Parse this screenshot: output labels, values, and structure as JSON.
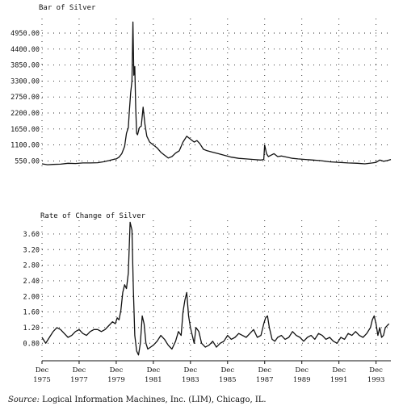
{
  "chart_data": [
    {
      "type": "line",
      "title": "Bar of Silver",
      "y_ticks": [
        "4950.00",
        "4400.00",
        "3850.00",
        "3300.00",
        "2750.00",
        "2200.00",
        "1650.00",
        "1100.00",
        "550.00"
      ],
      "ylim": [
        200,
        5450
      ],
      "xlim": [
        1975.0,
        1993.8
      ],
      "grid": true,
      "series": [
        {
          "x": [
            1975.0,
            1975.3,
            1975.6,
            1976.0,
            1976.4,
            1976.8,
            1977.2,
            1977.6,
            1978.0,
            1978.3,
            1978.6,
            1978.9,
            1979.0,
            1979.15,
            1979.3,
            1979.45,
            1979.55,
            1979.65,
            1979.7,
            1979.78,
            1979.85,
            1979.9,
            1979.95,
            1980.0,
            1980.05,
            1980.1,
            1980.15,
            1980.25,
            1980.35,
            1980.45,
            1980.55,
            1980.65,
            1980.8,
            1981.0,
            1981.2,
            1981.4,
            1981.6,
            1981.8,
            1982.0,
            1982.2,
            1982.4,
            1982.6,
            1982.8,
            1982.9,
            1983.0,
            1983.1,
            1983.2,
            1983.35,
            1983.5,
            1983.7,
            1983.9,
            1984.2,
            1984.5,
            1984.8,
            1985.2,
            1985.6,
            1986.0,
            1986.4,
            1986.8,
            1986.95,
            1987.0,
            1987.1,
            1987.2,
            1987.35,
            1987.5,
            1987.7,
            1987.9,
            1988.2,
            1988.5,
            1988.8,
            1989.2,
            1989.6,
            1990.0,
            1990.5,
            1991.0,
            1991.5,
            1992.0,
            1992.4,
            1992.8,
            1993.0,
            1993.2,
            1993.4,
            1993.6,
            1993.8
          ],
          "values": [
            450,
            420,
            430,
            440,
            470,
            460,
            480,
            480,
            490,
            520,
            560,
            610,
            620,
            680,
            800,
            1050,
            1500,
            1700,
            2200,
            2900,
            3300,
            5330,
            3500,
            3800,
            2400,
            1500,
            1450,
            1700,
            1750,
            2400,
            1800,
            1400,
            1200,
            1100,
            1000,
            850,
            750,
            650,
            700,
            820,
            900,
            1200,
            1400,
            1350,
            1300,
            1250,
            1200,
            1250,
            1150,
            950,
            900,
            850,
            800,
            750,
            680,
            640,
            620,
            600,
            580,
            600,
            1100,
            800,
            700,
            750,
            800,
            700,
            720,
            680,
            640,
            620,
            600,
            580,
            560,
            520,
            500,
            480,
            470,
            450,
            480,
            500,
            580,
            540,
            560,
            600
          ]
        }
      ]
    },
    {
      "type": "line",
      "title": "Rate of Change of Silver",
      "y_ticks": [
        "3.60",
        "3.20",
        "2.80",
        "2.40",
        "2.00",
        "1.60",
        "1.20",
        "0.80"
      ],
      "ylim": [
        0.35,
        3.95
      ],
      "xlim": [
        1975.0,
        1993.8
      ],
      "x_ticks": [
        {
          "x": 1975,
          "month": "Dec",
          "year": "1975"
        },
        {
          "x": 1977,
          "month": "Dec",
          "year": "1977"
        },
        {
          "x": 1979,
          "month": "Dec",
          "year": "1979"
        },
        {
          "x": 1981,
          "month": "Dec",
          "year": "1981"
        },
        {
          "x": 1983,
          "month": "Dec",
          "year": "1983"
        },
        {
          "x": 1985,
          "month": "Dec",
          "year": "1985"
        },
        {
          "x": 1987,
          "month": "Dec",
          "year": "1987"
        },
        {
          "x": 1989,
          "month": "Dec",
          "year": "1989"
        },
        {
          "x": 1991,
          "month": "Dec",
          "year": "1991"
        },
        {
          "x": 1993,
          "month": "Dec",
          "year": "1993"
        }
      ],
      "grid": true,
      "series": [
        {
          "x": [
            1975.0,
            1975.2,
            1975.4,
            1975.6,
            1975.8,
            1976.0,
            1976.2,
            1976.4,
            1976.6,
            1976.8,
            1977.0,
            1977.2,
            1977.4,
            1977.6,
            1977.8,
            1978.0,
            1978.2,
            1978.4,
            1978.6,
            1978.8,
            1978.95,
            1979.05,
            1979.15,
            1979.25,
            1979.35,
            1979.45,
            1979.55,
            1979.65,
            1979.75,
            1979.85,
            1979.92,
            1980.0,
            1980.1,
            1980.2,
            1980.3,
            1980.4,
            1980.5,
            1980.6,
            1980.7,
            1980.85,
            1981.0,
            1981.2,
            1981.4,
            1981.6,
            1981.8,
            1982.0,
            1982.2,
            1982.35,
            1982.5,
            1982.6,
            1982.7,
            1982.8,
            1982.9,
            1983.0,
            1983.1,
            1983.2,
            1983.3,
            1983.45,
            1983.6,
            1983.8,
            1984.0,
            1984.2,
            1984.4,
            1984.6,
            1984.8,
            1985.0,
            1985.2,
            1985.4,
            1985.6,
            1985.8,
            1986.0,
            1986.2,
            1986.4,
            1986.6,
            1986.8,
            1986.95,
            1987.05,
            1987.15,
            1987.25,
            1987.4,
            1987.55,
            1987.7,
            1987.9,
            1988.1,
            1988.3,
            1988.5,
            1988.7,
            1988.9,
            1989.1,
            1989.3,
            1989.5,
            1989.7,
            1989.9,
            1990.1,
            1990.3,
            1990.5,
            1990.7,
            1990.9,
            1991.1,
            1991.3,
            1991.5,
            1991.7,
            1991.9,
            1992.1,
            1992.3,
            1992.5,
            1992.7,
            1992.8,
            1992.9,
            1993.0,
            1993.1,
            1993.2,
            1993.3,
            1993.4,
            1993.5,
            1993.7
          ],
          "values": [
            0.95,
            0.8,
            0.95,
            1.1,
            1.2,
            1.15,
            1.05,
            0.95,
            1.0,
            1.1,
            1.15,
            1.05,
            1.0,
            1.1,
            1.15,
            1.15,
            1.1,
            1.15,
            1.25,
            1.35,
            1.3,
            1.45,
            1.4,
            1.65,
            2.1,
            2.3,
            2.2,
            2.6,
            3.9,
            3.7,
            2.2,
            1.0,
            0.6,
            0.5,
            0.8,
            1.5,
            1.3,
            0.8,
            0.65,
            0.7,
            0.75,
            0.85,
            1.0,
            0.9,
            0.75,
            0.65,
            0.85,
            1.1,
            1.0,
            1.6,
            1.9,
            2.1,
            1.5,
            1.2,
            1.0,
            0.8,
            1.2,
            1.1,
            0.8,
            0.7,
            0.75,
            0.85,
            0.7,
            0.8,
            0.85,
            1.0,
            0.9,
            0.95,
            1.05,
            1.0,
            0.95,
            1.05,
            1.15,
            0.95,
            1.0,
            1.3,
            1.45,
            1.5,
            1.2,
            0.9,
            0.85,
            0.95,
            1.0,
            0.9,
            0.95,
            1.1,
            1.0,
            0.95,
            0.85,
            0.95,
            1.0,
            0.9,
            1.05,
            1.0,
            0.9,
            0.95,
            0.85,
            0.8,
            0.95,
            0.9,
            1.05,
            1.0,
            1.1,
            1.0,
            0.95,
            1.05,
            1.2,
            1.4,
            1.5,
            1.3,
            1.0,
            1.2,
            0.95,
            1.0,
            1.2,
            1.3
          ]
        }
      ]
    }
  ],
  "source": {
    "label": "Source:",
    "text": "Logical Information Machines, Inc. (LIM), Chicago, IL."
  }
}
